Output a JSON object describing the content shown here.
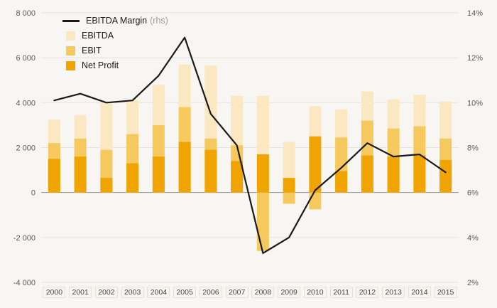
{
  "legend": {
    "items": [
      {
        "label": "EBITDA Margin",
        "suffix": "(rhs)",
        "type": "line",
        "color": "#1a1a1a"
      },
      {
        "label": "EBITDA",
        "suffix": "",
        "type": "swatch",
        "color": "#fbe8c2"
      },
      {
        "label": "EBIT",
        "suffix": "",
        "type": "swatch",
        "color": "#f6c95f"
      },
      {
        "label": "Net Profit",
        "suffix": "",
        "type": "swatch",
        "color": "#f0a402"
      }
    ]
  },
  "axes": {
    "left": {
      "ticks": [
        {
          "v": 8000,
          "label": "8 000"
        },
        {
          "v": 6000,
          "label": "6 000"
        },
        {
          "v": 4000,
          "label": "4 000"
        },
        {
          "v": 2000,
          "label": "2 000"
        },
        {
          "v": 0,
          "label": "0"
        },
        {
          "v": -2000,
          "label": "-2 000"
        },
        {
          "v": -4000,
          "label": "-4 000"
        }
      ]
    },
    "right": {
      "ticks": [
        {
          "v": 14,
          "label": "14%"
        },
        {
          "v": 12,
          "label": "12%"
        },
        {
          "v": 10,
          "label": "10%"
        },
        {
          "v": 8,
          "label": "8%"
        },
        {
          "v": 6,
          "label": "6%"
        },
        {
          "v": 4,
          "label": "4%"
        },
        {
          "v": 2,
          "label": "2%"
        }
      ]
    }
  },
  "chart_data": {
    "type": "bar",
    "subtype": "overlapped-bars-with-line",
    "categories": [
      "2000",
      "2001",
      "2002",
      "2003",
      "2004",
      "2005",
      "2006",
      "2007",
      "2008",
      "2009",
      "2010",
      "2011",
      "2012",
      "2013",
      "2014",
      "2015"
    ],
    "series": [
      {
        "name": "EBITDA",
        "type": "bar",
        "axis": "left",
        "color": "#fbe8c2",
        "values": [
          3250,
          3450,
          4000,
          4100,
          4800,
          5700,
          5650,
          4300,
          4300,
          2250,
          3850,
          3700,
          4500,
          4150,
          4350,
          4050
        ]
      },
      {
        "name": "EBIT",
        "type": "bar",
        "axis": "left",
        "color": "#f6c95f",
        "values": [
          2200,
          2400,
          1900,
          2600,
          3000,
          3800,
          2400,
          2100,
          -2600,
          -500,
          -750,
          2450,
          3200,
          2850,
          2950,
          2400
        ]
      },
      {
        "name": "Net Profit",
        "type": "bar",
        "axis": "left",
        "color": "#f0a402",
        "values": [
          1500,
          1600,
          650,
          1300,
          1600,
          2250,
          1900,
          1400,
          1700,
          650,
          2500,
          950,
          1650,
          1600,
          1650,
          1450
        ]
      },
      {
        "name": "EBITDA Margin (rhs)",
        "type": "line",
        "axis": "right",
        "color": "#1a1a1a",
        "values": [
          10.1,
          10.4,
          10.0,
          10.1,
          11.2,
          12.9,
          9.5,
          8.1,
          3.3,
          4.0,
          6.1,
          7.1,
          8.2,
          7.6,
          7.7,
          6.9
        ]
      }
    ],
    "left_axis": {
      "min": -4000,
      "max": 8000,
      "grid_step": 2000
    },
    "right_axis": {
      "min": 2,
      "max": 14,
      "tick_step": 2
    },
    "grid": true,
    "legend_position": "top-left",
    "background": "#f8f6f2",
    "grid_color": "#e6e3dc",
    "zero_line_color": "#94928c"
  }
}
